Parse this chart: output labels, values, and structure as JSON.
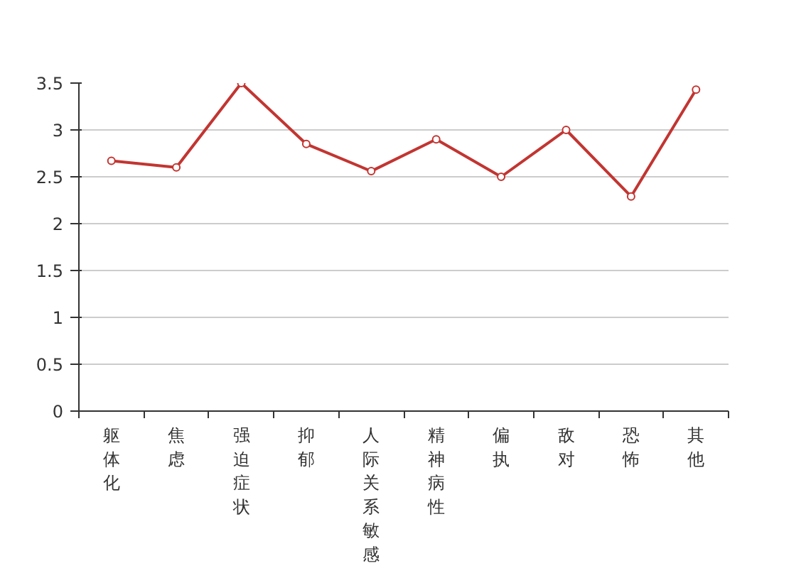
{
  "chart_data": {
    "type": "line",
    "categories": [
      "躯体化",
      "焦虑",
      "强迫症状",
      "抑郁",
      "人际关系敏感",
      "精神病性",
      "偏执",
      "敌对",
      "恐怖",
      "其他"
    ],
    "series": [
      {
        "color": "#c23531",
        "values": [
          2.67,
          2.6,
          3.5,
          2.85,
          2.56,
          2.9,
          2.5,
          3.0,
          2.29,
          3.43
        ]
      }
    ],
    "ylim": [
      0,
      3.5
    ],
    "yticks": [
      0,
      0.5,
      1,
      1.5,
      2,
      2.5,
      3,
      3.5
    ],
    "grid": "y",
    "marker": "circle"
  }
}
